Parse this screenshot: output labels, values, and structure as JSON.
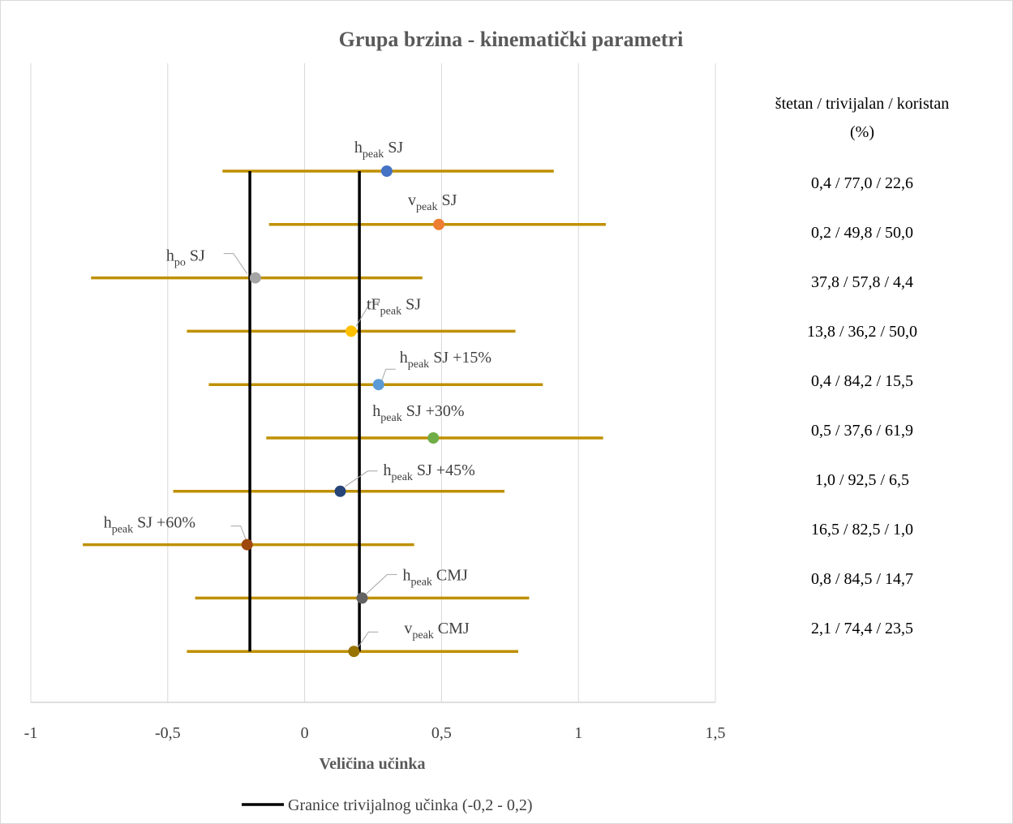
{
  "chart_data": {
    "type": "forest",
    "title": "Grupa brzina - kinematički parametri",
    "x_label": "Veličina učinka",
    "categories": [
      {
        "base": "h",
        "sub": "peak",
        "suffix": " SJ"
      },
      {
        "base": "v",
        "sub": "peak",
        "suffix": " SJ"
      },
      {
        "base": "h",
        "sub": "po",
        "suffix": " SJ"
      },
      {
        "base": "tF",
        "sub": "peak",
        "suffix": " SJ"
      },
      {
        "base": "h",
        "sub": "peak",
        "suffix": " SJ +15%"
      },
      {
        "base": "h",
        "sub": "peak",
        "suffix": " SJ +30%"
      },
      {
        "base": "h",
        "sub": "peak",
        "suffix": " SJ +45%"
      },
      {
        "base": "h",
        "sub": "peak",
        "suffix": " SJ +60%"
      },
      {
        "base": "h",
        "sub": "peak",
        "suffix": " CMJ"
      },
      {
        "base": "v",
        "sub": "peak",
        "suffix": " CMJ"
      }
    ],
    "values": [
      0.3,
      0.49,
      -0.18,
      0.17,
      0.27,
      0.47,
      0.13,
      -0.21,
      0.21,
      0.18
    ],
    "lower": [
      -0.3,
      -0.13,
      -0.78,
      -0.43,
      -0.35,
      -0.14,
      -0.48,
      -0.81,
      -0.4,
      -0.43
    ],
    "upper": [
      0.91,
      1.1,
      0.43,
      0.77,
      0.87,
      1.09,
      0.73,
      0.4,
      0.82,
      0.78
    ],
    "colors": [
      "#4472c4",
      "#ed7d31",
      "#a5a5a5",
      "#ffc000",
      "#5b9bd5",
      "#70ad47",
      "#264478",
      "#9e480e",
      "#636363",
      "#997300"
    ],
    "error_color": "#bf9000",
    "thresholds": [
      -0.2,
      0.2
    ],
    "threshold_color": "#000000",
    "legend": "Granice trivijalnog učinka (-0,2 - 0,2)",
    "xlim": [
      -1,
      1.5
    ],
    "xticks": [
      -1,
      {
        "value": -0.5,
        "label": "-0,5"
      },
      0,
      {
        "value": 0.5,
        "label": "0,5"
      },
      1,
      {
        "value": 1.5,
        "label": "1,5"
      }
    ],
    "grid": true,
    "side_header": [
      "štetan / trivijalan / koristan",
      "(%)"
    ],
    "side_values": [
      "0,4 / 77,0 / 22,6",
      "0,2 / 49,8 / 50,0",
      "37,8 / 57,8 / 4,4",
      "13,8 / 36,2 / 50,0",
      "0,4 / 84,2 / 15,5",
      "0,5 / 37,6 / 61,9",
      "1,0 / 92,5 / 6,5",
      "16,5 / 82,5 / 1,0",
      "0,8 / 84,5 / 14,7",
      "2,1 / 74,4 / 23,5"
    ]
  }
}
